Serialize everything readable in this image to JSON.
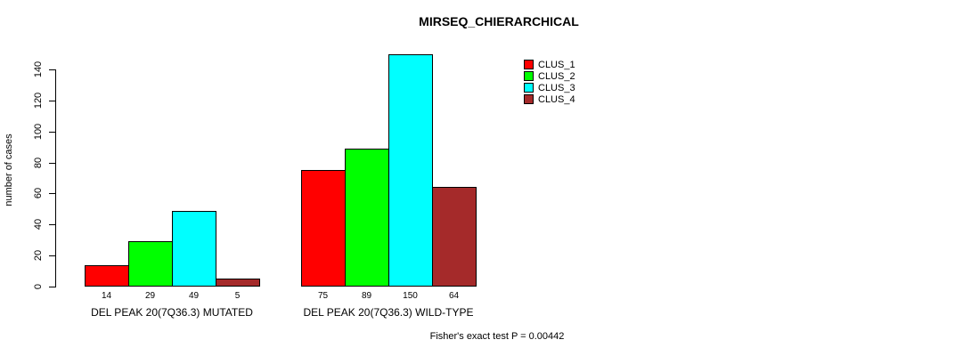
{
  "chart_data": {
    "type": "bar",
    "title": "MIRSEQ_CHIERARCHICAL",
    "ylabel": "number of cases",
    "xlabel": "",
    "ylim": [
      0,
      150
    ],
    "yticks": [
      0,
      20,
      40,
      60,
      80,
      100,
      120,
      140
    ],
    "grid": false,
    "legend_position": "top-right",
    "background_color": "#ffffff",
    "categories": [
      "DEL PEAK 20(7Q36.3) MUTATED",
      "DEL PEAK 20(7Q36.3) WILD-TYPE"
    ],
    "series": [
      {
        "name": "CLUS_1",
        "color": "#ff0000",
        "values": [
          14,
          75
        ]
      },
      {
        "name": "CLUS_2",
        "color": "#00ff00",
        "values": [
          29,
          89
        ]
      },
      {
        "name": "CLUS_3",
        "color": "#00ffff",
        "values": [
          49,
          150
        ]
      },
      {
        "name": "CLUS_4",
        "color": "#a52a2a",
        "values": [
          5,
          64
        ]
      }
    ],
    "bar_value_labels": [
      [
        "14",
        "29",
        "49",
        "5"
      ],
      [
        "75",
        "89",
        "150",
        "64"
      ]
    ],
    "annotation": "Fisher's exact test P = 0.00442"
  }
}
